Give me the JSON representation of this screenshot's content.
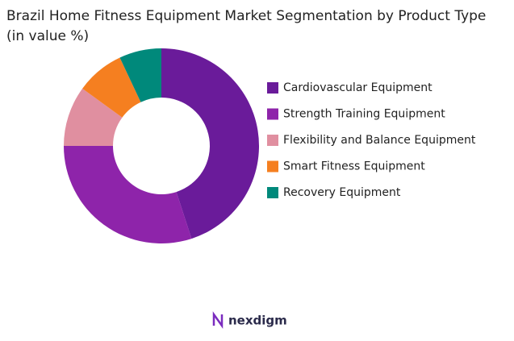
{
  "chart_data": {
    "type": "donut",
    "title": "Brazil Home Fitness Equipment Market Segmentation by Product Type (in value %)",
    "categories": [
      "Cardiovascular Equipment",
      "Strength Training Equipment",
      "Flexibility and Balance Equipment",
      "Smart Fitness Equipment",
      "Recovery Equipment"
    ],
    "values": [
      45,
      30,
      10,
      8,
      7
    ],
    "colors": [
      "#6a1b9a",
      "#8e24aa",
      "#e08fa0",
      "#f57f20",
      "#00897b"
    ],
    "legend": "right"
  },
  "logo": "nexdigm"
}
